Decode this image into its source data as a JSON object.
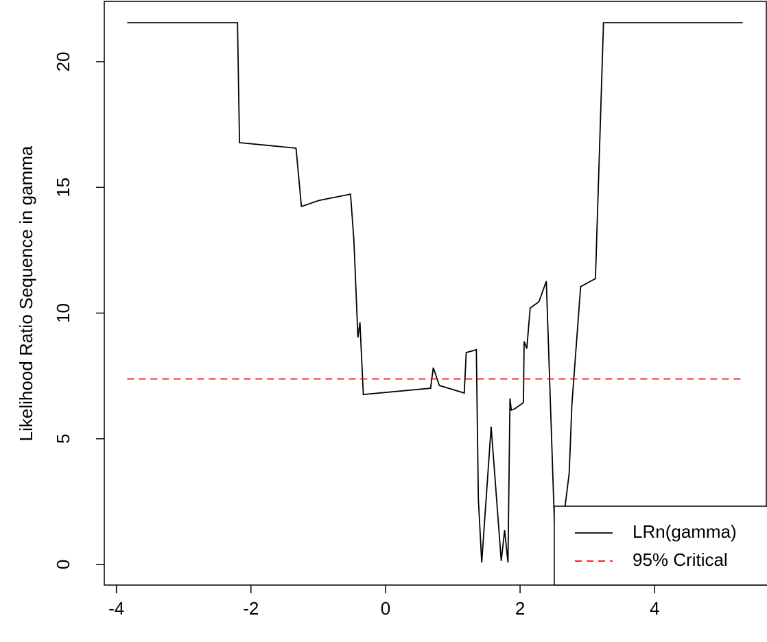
{
  "chart_data": {
    "type": "line",
    "y_label": "Likelihood Ratio Sequence in gamma",
    "xlim": [
      -4.18,
      5.67
    ],
    "ylim": [
      -0.82,
      22.4
    ],
    "xticks": [
      -4,
      -2,
      0,
      2,
      4
    ],
    "yticks": [
      0,
      5,
      10,
      15,
      20
    ],
    "legend": "bottom-right",
    "series": [
      {
        "name": "LRn(gamma)",
        "color": "#000000",
        "dash": "solid",
        "x": [
          -3.84,
          -2.2,
          -2.17,
          -1.33,
          -1.25,
          -0.99,
          -0.52,
          -0.47,
          -0.41,
          -0.38,
          -0.33,
          0.67,
          0.71,
          0.8,
          1.17,
          1.2,
          1.35,
          1.38,
          1.43,
          1.57,
          1.72,
          1.77,
          1.82,
          1.85,
          1.87,
          1.92,
          2.05,
          2.06,
          2.1,
          2.15,
          2.28,
          2.39,
          2.52,
          2.61,
          2.73,
          2.77,
          2.9,
          3.12,
          3.24,
          5.31
        ],
        "values": [
          21.55,
          21.55,
          16.78,
          16.56,
          14.24,
          14.48,
          14.73,
          12.9,
          9.03,
          9.63,
          6.76,
          7.01,
          7.83,
          7.12,
          6.82,
          8.43,
          8.54,
          2.59,
          0.08,
          5.48,
          0.14,
          1.36,
          0.08,
          6.6,
          6.14,
          6.19,
          6.44,
          8.87,
          8.59,
          10.2,
          10.45,
          11.27,
          0.9,
          1.04,
          3.63,
          6.36,
          11.05,
          11.37,
          21.55,
          21.55
        ]
      },
      {
        "name": "95% Critical",
        "color": "#ff0000",
        "dash": "dashed",
        "x": [
          -3.84,
          5.31
        ],
        "values": [
          7.38,
          7.38
        ]
      }
    ]
  }
}
